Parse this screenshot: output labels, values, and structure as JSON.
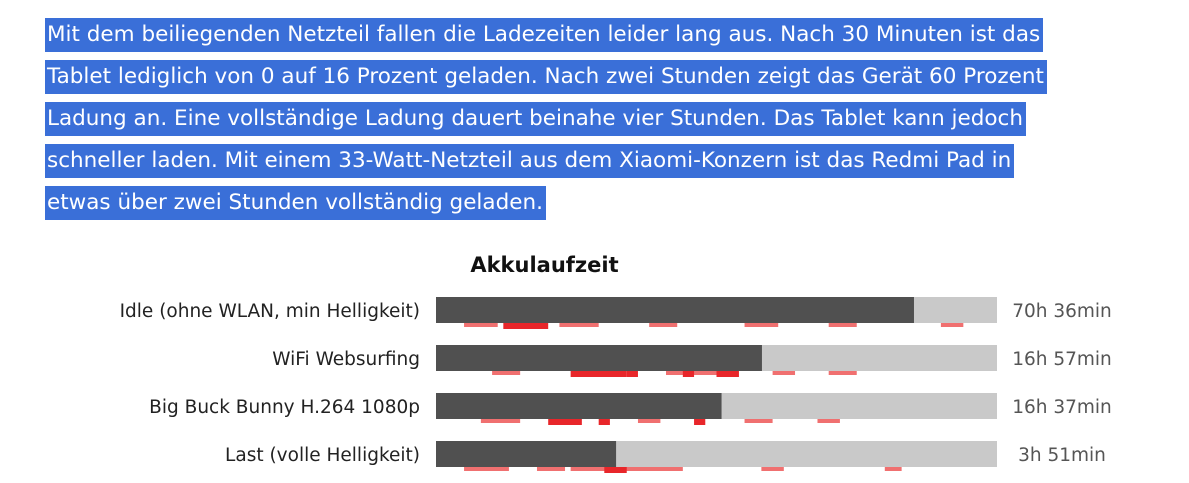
{
  "article": {
    "paragraph": "Mit dem beiliegenden Netzteil fallen die Ladezeiten leider lang aus. Nach 30 Minuten ist das Tablet lediglich von 0 auf 16 Prozent geladen. Nach zwei Stunden zeigt das Gerät 60 Prozent Ladung an. Eine vollständige Ladung dauert beinahe vier Stunden. Das Tablet kann jedoch schneller laden. Mit einem 33-Watt-Netzteil aus dem Xiaomi-Konzern ist das Redmi Pad in etwas über zwei Stunden vollständig geladen.",
    "selection_color": "#3a6fd8"
  },
  "chart_data": {
    "type": "bar",
    "orientation": "horizontal",
    "title": "Akkulaufzeit",
    "unit": "min",
    "xlim": [
      0,
      4980
    ],
    "categories": [
      "Idle (ohne WLAN, min Helligkeit)",
      "WiFi Websurfing",
      "Big Buck Bunny H.264 1080p",
      "Last (volle Helligkeit)"
    ],
    "values": [
      4236,
      1017,
      997,
      231
    ],
    "value_labels": [
      "70h 36min",
      "16h 57min",
      "16h 37min",
      "3h 51min"
    ],
    "bar_fraction": [
      0.852,
      0.581,
      0.509,
      0.321
    ],
    "colors": {
      "bar": "#505050",
      "track": "#c9c9c9",
      "comparison_light": "#f6a8a8",
      "comparison_mid": "#f07070",
      "comparison_strong": "#e8262a"
    }
  }
}
